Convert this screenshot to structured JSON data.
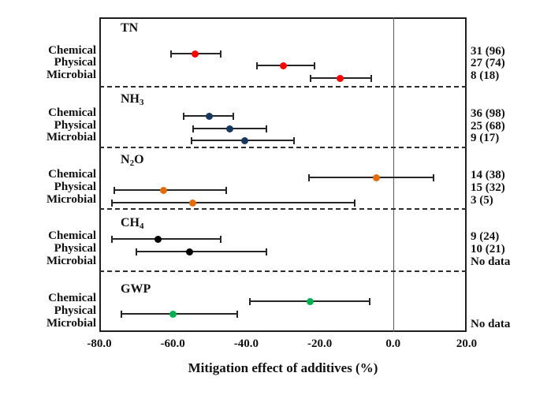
{
  "chart_data": {
    "type": "scatter",
    "subtype": "forest-plot-with-error-bars",
    "title": "",
    "xlabel": "Mitigation effect of additives (%)",
    "xlim": [
      -80,
      20
    ],
    "xticks": [
      -80,
      -60,
      -40,
      -20,
      0,
      20
    ],
    "xtick_labels": [
      "-80.0",
      "-60.0",
      "-40.0",
      "-20.0",
      "0.0",
      "20.0"
    ],
    "zero_reference_line": 0,
    "grid": false,
    "legend": "none",
    "row_labels": [
      "Chemical",
      "Physical",
      "Microbial"
    ],
    "groups": [
      {
        "name": "TN",
        "title_parts": [
          {
            "t": "TN"
          }
        ],
        "color": "#ff0000",
        "rows": [
          {
            "label": "Chemical",
            "mean": -54,
            "ci": [
              -60.5,
              -47
            ],
            "n": "31 (96)"
          },
          {
            "label": "Physical",
            "mean": -30,
            "ci": [
              -37,
              -21.5
            ],
            "n": "27 (74)"
          },
          {
            "label": "Microbial",
            "mean": -14.5,
            "ci": [
              -22.5,
              -6
            ],
            "n": "8 (18)"
          }
        ]
      },
      {
        "name": "NH3",
        "title_parts": [
          {
            "t": "NH"
          },
          {
            "t": "3",
            "sub": true
          }
        ],
        "color": "#17375e",
        "rows": [
          {
            "label": "Chemical",
            "mean": -50,
            "ci": [
              -57,
              -43.5
            ],
            "n": "36 (98)"
          },
          {
            "label": "Physical",
            "mean": -44.5,
            "ci": [
              -54.5,
              -34.5
            ],
            "n": "25 (68)"
          },
          {
            "label": "Microbial",
            "mean": -40.5,
            "ci": [
              -55,
              -27
            ],
            "n": "9 (17)"
          }
        ]
      },
      {
        "name": "N2O",
        "title_parts": [
          {
            "t": "N"
          },
          {
            "t": "2",
            "sub": true
          },
          {
            "t": "O"
          }
        ],
        "color": "#e36c0a",
        "rows": [
          {
            "label": "Chemical",
            "mean": -4.5,
            "ci": [
              -23,
              11
            ],
            "n": "14 (38)"
          },
          {
            "label": "Physical",
            "mean": -62.5,
            "ci": [
              -76,
              -45.5
            ],
            "n": "15 (32)"
          },
          {
            "label": "Microbial",
            "mean": -54.5,
            "ci": [
              -76.5,
              -10.5
            ],
            "n": "3 (5)"
          }
        ]
      },
      {
        "name": "CH4",
        "title_parts": [
          {
            "t": "CH"
          },
          {
            "t": "4",
            "sub": true
          }
        ],
        "color": "#000000",
        "rows": [
          {
            "label": "Chemical",
            "mean": -64,
            "ci": [
              -76.5,
              -47
            ],
            "n": "9 (24)"
          },
          {
            "label": "Physical",
            "mean": -55.5,
            "ci": [
              -70,
              -34.5
            ],
            "n": "10 (21)"
          },
          {
            "label": "Microbial",
            "no_data": true,
            "n": "No data"
          }
        ]
      },
      {
        "name": "GWP",
        "title_parts": [
          {
            "t": "GWP"
          }
        ],
        "color": "#00b050",
        "rows": [
          {
            "label": "Chemical",
            "mean": -22.5,
            "ci": [
              -39,
              -6.5
            ],
            "n": ""
          },
          {
            "label": "Physical",
            "mean": -60,
            "ci": [
              -74,
              -42.5
            ],
            "n": ""
          },
          {
            "label": "Microbial",
            "no_data": true,
            "n": "No data"
          }
        ]
      }
    ]
  }
}
